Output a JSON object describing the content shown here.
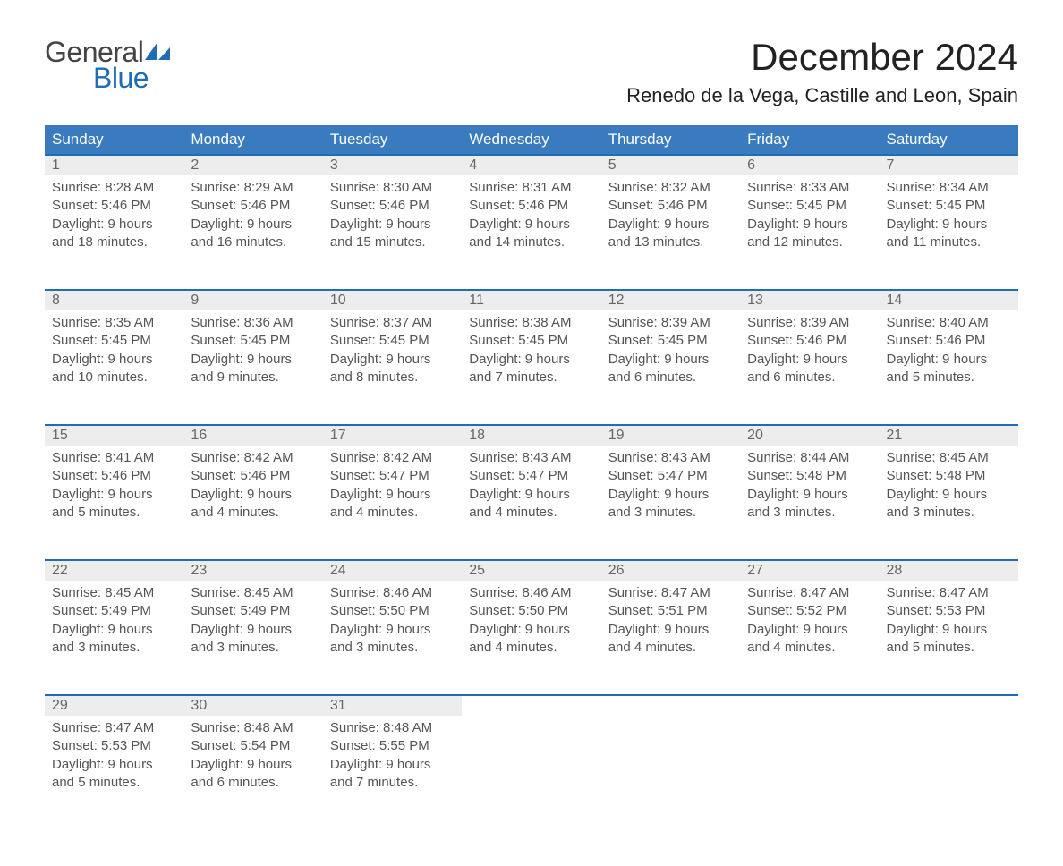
{
  "brand": {
    "general": "General",
    "blue": "Blue"
  },
  "title": "December 2024",
  "location": "Renedo de la Vega, Castille and Leon, Spain",
  "day_headers": [
    "Sunday",
    "Monday",
    "Tuesday",
    "Wednesday",
    "Thursday",
    "Friday",
    "Saturday"
  ],
  "colors": {
    "header_bg": "#3a7bbf",
    "accent": "#1f6db3",
    "gray_row": "#ededed",
    "text": "#333333"
  },
  "weeks": [
    [
      {
        "n": "1",
        "sunrise": "Sunrise: 8:28 AM",
        "sunset": "Sunset: 5:46 PM",
        "d1": "Daylight: 9 hours",
        "d2": "and 18 minutes."
      },
      {
        "n": "2",
        "sunrise": "Sunrise: 8:29 AM",
        "sunset": "Sunset: 5:46 PM",
        "d1": "Daylight: 9 hours",
        "d2": "and 16 minutes."
      },
      {
        "n": "3",
        "sunrise": "Sunrise: 8:30 AM",
        "sunset": "Sunset: 5:46 PM",
        "d1": "Daylight: 9 hours",
        "d2": "and 15 minutes."
      },
      {
        "n": "4",
        "sunrise": "Sunrise: 8:31 AM",
        "sunset": "Sunset: 5:46 PM",
        "d1": "Daylight: 9 hours",
        "d2": "and 14 minutes."
      },
      {
        "n": "5",
        "sunrise": "Sunrise: 8:32 AM",
        "sunset": "Sunset: 5:46 PM",
        "d1": "Daylight: 9 hours",
        "d2": "and 13 minutes."
      },
      {
        "n": "6",
        "sunrise": "Sunrise: 8:33 AM",
        "sunset": "Sunset: 5:45 PM",
        "d1": "Daylight: 9 hours",
        "d2": "and 12 minutes."
      },
      {
        "n": "7",
        "sunrise": "Sunrise: 8:34 AM",
        "sunset": "Sunset: 5:45 PM",
        "d1": "Daylight: 9 hours",
        "d2": "and 11 minutes."
      }
    ],
    [
      {
        "n": "8",
        "sunrise": "Sunrise: 8:35 AM",
        "sunset": "Sunset: 5:45 PM",
        "d1": "Daylight: 9 hours",
        "d2": "and 10 minutes."
      },
      {
        "n": "9",
        "sunrise": "Sunrise: 8:36 AM",
        "sunset": "Sunset: 5:45 PM",
        "d1": "Daylight: 9 hours",
        "d2": "and 9 minutes."
      },
      {
        "n": "10",
        "sunrise": "Sunrise: 8:37 AM",
        "sunset": "Sunset: 5:45 PM",
        "d1": "Daylight: 9 hours",
        "d2": "and 8 minutes."
      },
      {
        "n": "11",
        "sunrise": "Sunrise: 8:38 AM",
        "sunset": "Sunset: 5:45 PM",
        "d1": "Daylight: 9 hours",
        "d2": "and 7 minutes."
      },
      {
        "n": "12",
        "sunrise": "Sunrise: 8:39 AM",
        "sunset": "Sunset: 5:45 PM",
        "d1": "Daylight: 9 hours",
        "d2": "and 6 minutes."
      },
      {
        "n": "13",
        "sunrise": "Sunrise: 8:39 AM",
        "sunset": "Sunset: 5:46 PM",
        "d1": "Daylight: 9 hours",
        "d2": "and 6 minutes."
      },
      {
        "n": "14",
        "sunrise": "Sunrise: 8:40 AM",
        "sunset": "Sunset: 5:46 PM",
        "d1": "Daylight: 9 hours",
        "d2": "and 5 minutes."
      }
    ],
    [
      {
        "n": "15",
        "sunrise": "Sunrise: 8:41 AM",
        "sunset": "Sunset: 5:46 PM",
        "d1": "Daylight: 9 hours",
        "d2": "and 5 minutes."
      },
      {
        "n": "16",
        "sunrise": "Sunrise: 8:42 AM",
        "sunset": "Sunset: 5:46 PM",
        "d1": "Daylight: 9 hours",
        "d2": "and 4 minutes."
      },
      {
        "n": "17",
        "sunrise": "Sunrise: 8:42 AM",
        "sunset": "Sunset: 5:47 PM",
        "d1": "Daylight: 9 hours",
        "d2": "and 4 minutes."
      },
      {
        "n": "18",
        "sunrise": "Sunrise: 8:43 AM",
        "sunset": "Sunset: 5:47 PM",
        "d1": "Daylight: 9 hours",
        "d2": "and 4 minutes."
      },
      {
        "n": "19",
        "sunrise": "Sunrise: 8:43 AM",
        "sunset": "Sunset: 5:47 PM",
        "d1": "Daylight: 9 hours",
        "d2": "and 3 minutes."
      },
      {
        "n": "20",
        "sunrise": "Sunrise: 8:44 AM",
        "sunset": "Sunset: 5:48 PM",
        "d1": "Daylight: 9 hours",
        "d2": "and 3 minutes."
      },
      {
        "n": "21",
        "sunrise": "Sunrise: 8:45 AM",
        "sunset": "Sunset: 5:48 PM",
        "d1": "Daylight: 9 hours",
        "d2": "and 3 minutes."
      }
    ],
    [
      {
        "n": "22",
        "sunrise": "Sunrise: 8:45 AM",
        "sunset": "Sunset: 5:49 PM",
        "d1": "Daylight: 9 hours",
        "d2": "and 3 minutes."
      },
      {
        "n": "23",
        "sunrise": "Sunrise: 8:45 AM",
        "sunset": "Sunset: 5:49 PM",
        "d1": "Daylight: 9 hours",
        "d2": "and 3 minutes."
      },
      {
        "n": "24",
        "sunrise": "Sunrise: 8:46 AM",
        "sunset": "Sunset: 5:50 PM",
        "d1": "Daylight: 9 hours",
        "d2": "and 3 minutes."
      },
      {
        "n": "25",
        "sunrise": "Sunrise: 8:46 AM",
        "sunset": "Sunset: 5:50 PM",
        "d1": "Daylight: 9 hours",
        "d2": "and 4 minutes."
      },
      {
        "n": "26",
        "sunrise": "Sunrise: 8:47 AM",
        "sunset": "Sunset: 5:51 PM",
        "d1": "Daylight: 9 hours",
        "d2": "and 4 minutes."
      },
      {
        "n": "27",
        "sunrise": "Sunrise: 8:47 AM",
        "sunset": "Sunset: 5:52 PM",
        "d1": "Daylight: 9 hours",
        "d2": "and 4 minutes."
      },
      {
        "n": "28",
        "sunrise": "Sunrise: 8:47 AM",
        "sunset": "Sunset: 5:53 PM",
        "d1": "Daylight: 9 hours",
        "d2": "and 5 minutes."
      }
    ],
    [
      {
        "n": "29",
        "sunrise": "Sunrise: 8:47 AM",
        "sunset": "Sunset: 5:53 PM",
        "d1": "Daylight: 9 hours",
        "d2": "and 5 minutes."
      },
      {
        "n": "30",
        "sunrise": "Sunrise: 8:48 AM",
        "sunset": "Sunset: 5:54 PM",
        "d1": "Daylight: 9 hours",
        "d2": "and 6 minutes."
      },
      {
        "n": "31",
        "sunrise": "Sunrise: 8:48 AM",
        "sunset": "Sunset: 5:55 PM",
        "d1": "Daylight: 9 hours",
        "d2": "and 7 minutes."
      },
      null,
      null,
      null,
      null
    ]
  ]
}
